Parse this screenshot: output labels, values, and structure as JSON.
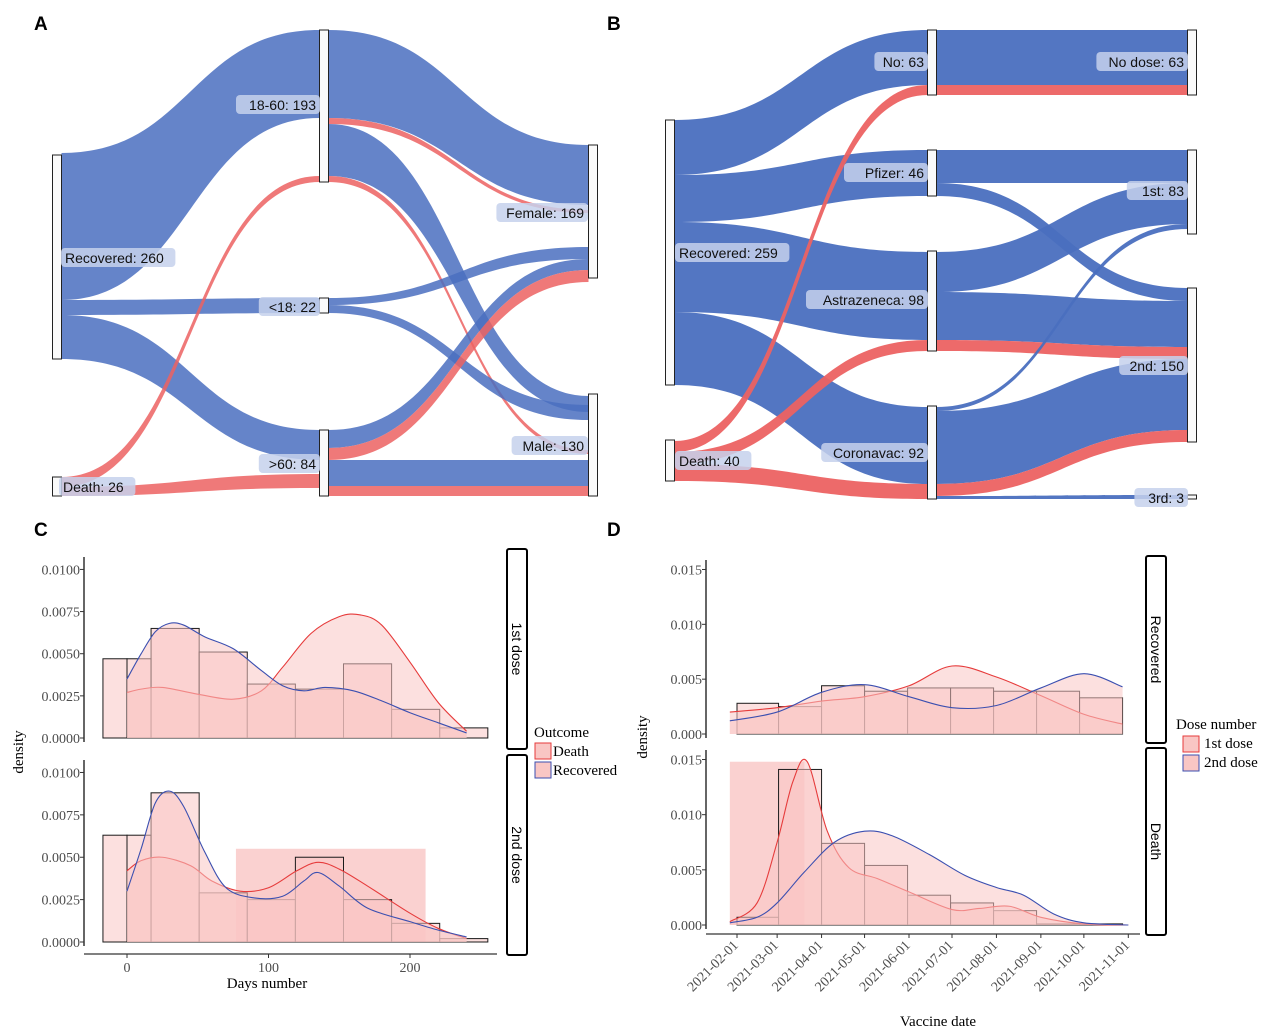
{
  "colors": {
    "flow_blue": "#4a6fbf",
    "flow_red": "#ec6262",
    "death_fill": "#f9c6c4",
    "death_line": "#e63b3b",
    "recovered_line": "#3b4fb0",
    "node_label_bg": "#c5d1ec"
  },
  "panels": {
    "A": {
      "letter": "A"
    },
    "B": {
      "letter": "B"
    },
    "C": {
      "letter": "C"
    },
    "D": {
      "letter": "D"
    }
  },
  "chart_data": [
    {
      "id": "A",
      "type": "alluvial",
      "axes": [
        {
          "nodes": [
            {
              "label": "Recovered: 260",
              "value": 260
            },
            {
              "label": "Death: 26",
              "value": 26
            }
          ]
        },
        {
          "nodes": [
            {
              "label": "18-60: 193",
              "value": 193
            },
            {
              "label": "<18: 22",
              "value": 22
            },
            {
              "label": ">60: 84",
              "value": 84
            }
          ]
        },
        {
          "nodes": [
            {
              "label": "Female: 169",
              "value": 169
            },
            {
              "label": "Male: 130",
              "value": 130
            }
          ]
        }
      ]
    },
    {
      "id": "B",
      "type": "alluvial",
      "axes": [
        {
          "nodes": [
            {
              "label": "Recovered: 259",
              "value": 259
            },
            {
              "label": "Death: 40",
              "value": 40
            }
          ]
        },
        {
          "nodes": [
            {
              "label": "No: 63",
              "value": 63
            },
            {
              "label": "Pfizer: 46",
              "value": 46
            },
            {
              "label": "Astrazeneca: 98",
              "value": 98
            },
            {
              "label": "Coronavac: 92",
              "value": 92
            }
          ]
        },
        {
          "nodes": [
            {
              "label": "No dose: 63",
              "value": 63
            },
            {
              "label": "1st: 83",
              "value": 83
            },
            {
              "label": "2nd: 150",
              "value": 150
            },
            {
              "label": "3rd: 3",
              "value": 3
            }
          ]
        }
      ]
    },
    {
      "id": "C",
      "type": "histogram+density",
      "xlabel": "Days number",
      "ylabel": "density",
      "xlim": [
        -20,
        270
      ],
      "ylim": [
        0,
        0.0105
      ],
      "x_ticks": [
        "0",
        "100",
        "200"
      ],
      "y_ticks": [
        "0.0000",
        "0.0025",
        "0.0050",
        "0.0075",
        "0.0100"
      ],
      "legend": {
        "title": "Outcome",
        "entries": [
          "Death",
          "Recovered"
        ]
      },
      "facets": [
        {
          "strip": "1st dose",
          "hist_bins": {
            "edges": [
              -17,
              0,
              17,
              51,
              85,
              119,
              153,
              187,
              221,
              255
            ],
            "heights": [
              0.0047,
              0.0047,
              0.0065,
              0.0051,
              0.0032,
              0.0029,
              0.0044,
              0.0017,
              0.0006
            ]
          },
          "death_density": {
            "x": [
              0,
              10,
              25,
              50,
              75,
              95,
              110,
              130,
              150,
              165,
              180,
              200,
              220,
              240
            ],
            "y": [
              0.0027,
              0.0029,
              0.003,
              0.0026,
              0.0023,
              0.0028,
              0.0042,
              0.0062,
              0.0072,
              0.0073,
              0.0067,
              0.0045,
              0.0021,
              0.0004
            ]
          },
          "recovered_density": {
            "x": [
              0,
              10,
              20,
              30,
              40,
              55,
              75,
              95,
              110,
              125,
              140,
              160,
              180,
              200,
              220,
              240
            ],
            "y": [
              0.0035,
              0.005,
              0.0063,
              0.0068,
              0.0067,
              0.006,
              0.0053,
              0.004,
              0.0031,
              0.0028,
              0.003,
              0.0028,
              0.0022,
              0.0015,
              0.0009,
              0.0003
            ]
          }
        },
        {
          "strip": "2nd dose",
          "hist_bins": {
            "edges": [
              -17,
              0,
              17,
              51,
              85,
              119,
              153,
              187,
              221,
              255
            ],
            "heights": [
              0.0063,
              0.0063,
              0.0088,
              0.0029,
              0.0025,
              0.005,
              0.0025,
              0.0011,
              0.0002
            ]
          },
          "death_rect": {
            "x": [
              77,
              211
            ],
            "y": 0.0055
          },
          "death_density": {
            "x": [
              0,
              10,
              25,
              45,
              60,
              80,
              100,
              120,
              135,
              150,
              170,
              200,
              220,
              240
            ],
            "y": [
              0.0042,
              0.0048,
              0.005,
              0.0045,
              0.0036,
              0.003,
              0.0032,
              0.0042,
              0.0047,
              0.0043,
              0.0033,
              0.0017,
              0.0008,
              0.0002
            ]
          },
          "recovered_density": {
            "x": [
              0,
              10,
              20,
              30,
              40,
              55,
              70,
              90,
              110,
              125,
              135,
              150,
              170,
              200,
              220,
              240
            ],
            "y": [
              0.003,
              0.0055,
              0.0082,
              0.0089,
              0.008,
              0.0053,
              0.0032,
              0.0026,
              0.0027,
              0.0036,
              0.0041,
              0.0033,
              0.002,
              0.0012,
              0.0007,
              0.0003
            ]
          }
        }
      ]
    },
    {
      "id": "D",
      "type": "histogram+density",
      "xlabel": "Vaccine date",
      "ylabel": "density",
      "x_is_date": true,
      "xlim": [
        "2021-01-20",
        "2021-11-12"
      ],
      "ylim": [
        0,
        0.0155
      ],
      "x_ticks": [
        "2021-02-01",
        "2021-03-01",
        "2021-04-01",
        "2021-05-01",
        "2021-06-01",
        "2021-07-01",
        "2021-08-01",
        "2021-09-01",
        "2021-10-01",
        "2021-11-01"
      ],
      "y_ticks": [
        "0.000",
        "0.005",
        "0.010",
        "0.015"
      ],
      "legend": {
        "title": "Dose number",
        "entries": [
          "1st dose",
          "2nd dose"
        ]
      },
      "facets": [
        {
          "strip": "Recovered",
          "hist_bins": {
            "edges": [
              "2021-02-01",
              "2021-03-02",
              "2021-04-01",
              "2021-05-01",
              "2021-05-31",
              "2021-06-30",
              "2021-07-30",
              "2021-08-29",
              "2021-09-28",
              "2021-10-28"
            ],
            "heights": [
              0.0028,
              0.0025,
              0.0044,
              0.0039,
              0.0042,
              0.0042,
              0.0039,
              0.0039,
              0.0033
            ]
          },
          "death_density": {
            "x": [
              "2021-01-27",
              "2021-03-01",
              "2021-04-01",
              "2021-05-01",
              "2021-06-01",
              "2021-07-01",
              "2021-08-01",
              "2021-09-01",
              "2021-10-01",
              "2021-10-28"
            ],
            "y": [
              0.002,
              0.0024,
              0.003,
              0.0034,
              0.0044,
              0.0062,
              0.0052,
              0.0035,
              0.0018,
              0.0009
            ]
          },
          "recovered_density": {
            "x": [
              "2021-01-27",
              "2021-03-01",
              "2021-04-01",
              "2021-05-01",
              "2021-06-01",
              "2021-07-01",
              "2021-08-01",
              "2021-09-01",
              "2021-10-01",
              "2021-10-28"
            ],
            "y": [
              0.0012,
              0.002,
              0.0038,
              0.0045,
              0.0034,
              0.0024,
              0.0026,
              0.0042,
              0.0055,
              0.0043
            ]
          }
        },
        {
          "strip": "Death",
          "hist_bins": {
            "edges": [
              "2021-02-01",
              "2021-03-02",
              "2021-04-01",
              "2021-05-01",
              "2021-05-31",
              "2021-06-30",
              "2021-07-30",
              "2021-08-29",
              "2021-09-28",
              "2021-10-28"
            ],
            "heights": [
              0.0007,
              0.0141,
              0.0074,
              0.0054,
              0.0027,
              0.002,
              0.0013,
              0.0001,
              0.0001
            ]
          },
          "death_rect": {
            "x": [
              "2021-01-27",
              "2021-03-20"
            ],
            "y": 0.0148
          },
          "death_density": {
            "x": [
              "2021-01-27",
              "2021-02-15",
              "2021-03-01",
              "2021-03-12",
              "2021-03-22",
              "2021-04-05",
              "2021-04-20",
              "2021-05-10",
              "2021-06-01",
              "2021-07-01",
              "2021-07-20",
              "2021-08-10",
              "2021-09-01",
              "2021-10-01",
              "2021-11-01"
            ],
            "y": [
              0.0003,
              0.002,
              0.0075,
              0.013,
              0.0148,
              0.0085,
              0.0052,
              0.0042,
              0.003,
              0.0014,
              0.0015,
              0.0017,
              0.0007,
              0.0001,
              0.0
            ]
          },
          "recovered_density": {
            "x": [
              "2021-01-27",
              "2021-02-15",
              "2021-03-01",
              "2021-03-20",
              "2021-04-10",
              "2021-05-01",
              "2021-05-20",
              "2021-06-15",
              "2021-07-10",
              "2021-08-01",
              "2021-08-20",
              "2021-09-10",
              "2021-10-01",
              "2021-11-01"
            ],
            "y": [
              0.0002,
              0.0007,
              0.002,
              0.0048,
              0.0075,
              0.0085,
              0.0081,
              0.0064,
              0.0045,
              0.0034,
              0.0027,
              0.001,
              0.0002,
              0.0
            ]
          }
        }
      ]
    }
  ]
}
